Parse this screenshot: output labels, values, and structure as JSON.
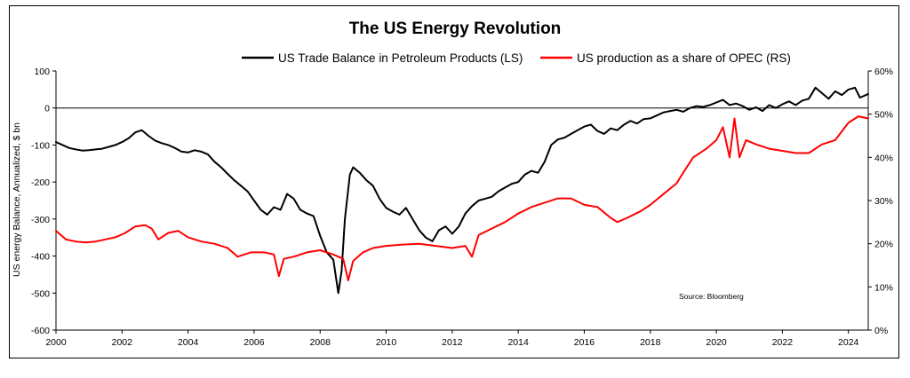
{
  "chart_data": {
    "type": "line",
    "title": "The US Energy Revolution",
    "source": "Source: Bloomberg",
    "ylabel_left": "US energy Balance, Annualized, $ bn",
    "left_axis": {
      "min": -600,
      "max": 100,
      "ticks": [
        "100",
        "0",
        "-100",
        "-200",
        "-300",
        "-400",
        "-500",
        "-600"
      ]
    },
    "right_axis": {
      "min": 0,
      "max": 60,
      "unit": "%",
      "ticks": [
        "60%",
        "50%",
        "40%",
        "30%",
        "20%",
        "10%",
        "0%"
      ]
    },
    "x_axis": {
      "min": 2000,
      "max": 2024.6,
      "ticks": [
        "2000",
        "2002",
        "2004",
        "2006",
        "2008",
        "2010",
        "2012",
        "2014",
        "2016",
        "2018",
        "2020",
        "2022",
        "2024"
      ]
    },
    "legend_position": "top",
    "series": [
      {
        "name": "US Trade Balance in Petroleum Products (LS)",
        "axis": "left",
        "color": "#000000",
        "points": [
          [
            2000.0,
            -92
          ],
          [
            2000.2,
            -100
          ],
          [
            2000.4,
            -108
          ],
          [
            2000.6,
            -112
          ],
          [
            2000.8,
            -115
          ],
          [
            2001.0,
            -114
          ],
          [
            2001.2,
            -112
          ],
          [
            2001.4,
            -110
          ],
          [
            2001.6,
            -105
          ],
          [
            2001.8,
            -100
          ],
          [
            2002.0,
            -92
          ],
          [
            2002.2,
            -82
          ],
          [
            2002.4,
            -66
          ],
          [
            2002.6,
            -60
          ],
          [
            2002.8,
            -75
          ],
          [
            2003.0,
            -88
          ],
          [
            2003.2,
            -95
          ],
          [
            2003.4,
            -100
          ],
          [
            2003.6,
            -108
          ],
          [
            2003.8,
            -118
          ],
          [
            2004.0,
            -120
          ],
          [
            2004.2,
            -114
          ],
          [
            2004.4,
            -118
          ],
          [
            2004.6,
            -125
          ],
          [
            2004.8,
            -145
          ],
          [
            2005.0,
            -160
          ],
          [
            2005.2,
            -178
          ],
          [
            2005.4,
            -195
          ],
          [
            2005.6,
            -210
          ],
          [
            2005.8,
            -225
          ],
          [
            2006.0,
            -250
          ],
          [
            2006.2,
            -275
          ],
          [
            2006.4,
            -288
          ],
          [
            2006.6,
            -268
          ],
          [
            2006.8,
            -275
          ],
          [
            2007.0,
            -232
          ],
          [
            2007.2,
            -245
          ],
          [
            2007.4,
            -275
          ],
          [
            2007.6,
            -285
          ],
          [
            2007.8,
            -292
          ],
          [
            2008.0,
            -345
          ],
          [
            2008.2,
            -390
          ],
          [
            2008.4,
            -410
          ],
          [
            2008.55,
            -500
          ],
          [
            2008.65,
            -440
          ],
          [
            2008.75,
            -300
          ],
          [
            2008.9,
            -180
          ],
          [
            2009.0,
            -160
          ],
          [
            2009.2,
            -175
          ],
          [
            2009.4,
            -195
          ],
          [
            2009.6,
            -210
          ],
          [
            2009.8,
            -245
          ],
          [
            2010.0,
            -270
          ],
          [
            2010.2,
            -280
          ],
          [
            2010.4,
            -288
          ],
          [
            2010.6,
            -270
          ],
          [
            2010.8,
            -300
          ],
          [
            2011.0,
            -330
          ],
          [
            2011.2,
            -350
          ],
          [
            2011.4,
            -360
          ],
          [
            2011.6,
            -330
          ],
          [
            2011.8,
            -320
          ],
          [
            2012.0,
            -340
          ],
          [
            2012.2,
            -320
          ],
          [
            2012.4,
            -285
          ],
          [
            2012.6,
            -265
          ],
          [
            2012.8,
            -250
          ],
          [
            2013.0,
            -245
          ],
          [
            2013.2,
            -240
          ],
          [
            2013.4,
            -225
          ],
          [
            2013.6,
            -215
          ],
          [
            2013.8,
            -205
          ],
          [
            2014.0,
            -200
          ],
          [
            2014.2,
            -180
          ],
          [
            2014.4,
            -170
          ],
          [
            2014.6,
            -175
          ],
          [
            2014.8,
            -145
          ],
          [
            2015.0,
            -100
          ],
          [
            2015.2,
            -85
          ],
          [
            2015.4,
            -80
          ],
          [
            2015.6,
            -70
          ],
          [
            2015.8,
            -60
          ],
          [
            2016.0,
            -50
          ],
          [
            2016.2,
            -45
          ],
          [
            2016.4,
            -62
          ],
          [
            2016.6,
            -70
          ],
          [
            2016.8,
            -55
          ],
          [
            2017.0,
            -60
          ],
          [
            2017.2,
            -45
          ],
          [
            2017.4,
            -35
          ],
          [
            2017.6,
            -42
          ],
          [
            2017.8,
            -30
          ],
          [
            2018.0,
            -28
          ],
          [
            2018.2,
            -20
          ],
          [
            2018.4,
            -12
          ],
          [
            2018.6,
            -8
          ],
          [
            2018.8,
            -5
          ],
          [
            2019.0,
            -10
          ],
          [
            2019.2,
            0
          ],
          [
            2019.4,
            5
          ],
          [
            2019.6,
            3
          ],
          [
            2019.8,
            8
          ],
          [
            2020.0,
            15
          ],
          [
            2020.2,
            22
          ],
          [
            2020.4,
            8
          ],
          [
            2020.6,
            12
          ],
          [
            2020.8,
            5
          ],
          [
            2021.0,
            -5
          ],
          [
            2021.2,
            2
          ],
          [
            2021.4,
            -8
          ],
          [
            2021.6,
            8
          ],
          [
            2021.8,
            0
          ],
          [
            2022.0,
            10
          ],
          [
            2022.2,
            18
          ],
          [
            2022.4,
            8
          ],
          [
            2022.6,
            20
          ],
          [
            2022.8,
            25
          ],
          [
            2023.0,
            55
          ],
          [
            2023.2,
            40
          ],
          [
            2023.4,
            25
          ],
          [
            2023.6,
            45
          ],
          [
            2023.8,
            35
          ],
          [
            2024.0,
            50
          ],
          [
            2024.2,
            55
          ],
          [
            2024.35,
            28
          ],
          [
            2024.6,
            38
          ]
        ]
      },
      {
        "name": "US production as a share of OPEC (RS)",
        "axis": "right",
        "color": "#ff0000",
        "points": [
          [
            2000.0,
            23
          ],
          [
            2000.3,
            21
          ],
          [
            2000.6,
            20.5
          ],
          [
            2000.9,
            20.3
          ],
          [
            2001.2,
            20.5
          ],
          [
            2001.5,
            21
          ],
          [
            2001.8,
            21.5
          ],
          [
            2002.1,
            22.5
          ],
          [
            2002.4,
            24
          ],
          [
            2002.7,
            24.3
          ],
          [
            2002.9,
            23.5
          ],
          [
            2003.1,
            21
          ],
          [
            2003.4,
            22.5
          ],
          [
            2003.7,
            23
          ],
          [
            2004.0,
            21.5
          ],
          [
            2004.4,
            20.5
          ],
          [
            2004.8,
            20
          ],
          [
            2005.2,
            19
          ],
          [
            2005.5,
            17
          ],
          [
            2005.9,
            18
          ],
          [
            2006.3,
            18
          ],
          [
            2006.6,
            17.5
          ],
          [
            2006.75,
            12.5
          ],
          [
            2006.9,
            16.5
          ],
          [
            2007.2,
            17
          ],
          [
            2007.6,
            18
          ],
          [
            2008.0,
            18.5
          ],
          [
            2008.4,
            17.5
          ],
          [
            2008.7,
            16.5
          ],
          [
            2008.85,
            11.5
          ],
          [
            2009.0,
            16
          ],
          [
            2009.3,
            18
          ],
          [
            2009.6,
            19
          ],
          [
            2010.0,
            19.5
          ],
          [
            2010.5,
            19.8
          ],
          [
            2011.0,
            20
          ],
          [
            2011.5,
            19.5
          ],
          [
            2012.0,
            19
          ],
          [
            2012.4,
            19.5
          ],
          [
            2012.6,
            17
          ],
          [
            2012.8,
            22
          ],
          [
            2013.2,
            23.5
          ],
          [
            2013.6,
            25
          ],
          [
            2014.0,
            27
          ],
          [
            2014.4,
            28.5
          ],
          [
            2014.8,
            29.5
          ],
          [
            2015.2,
            30.5
          ],
          [
            2015.6,
            30.5
          ],
          [
            2016.0,
            29
          ],
          [
            2016.4,
            28.5
          ],
          [
            2016.8,
            26
          ],
          [
            2017.0,
            25
          ],
          [
            2017.3,
            26
          ],
          [
            2017.7,
            27.5
          ],
          [
            2018.0,
            29
          ],
          [
            2018.4,
            31.5
          ],
          [
            2018.8,
            34
          ],
          [
            2019.0,
            36.5
          ],
          [
            2019.3,
            40
          ],
          [
            2019.7,
            42
          ],
          [
            2020.0,
            44
          ],
          [
            2020.2,
            47
          ],
          [
            2020.4,
            40
          ],
          [
            2020.55,
            49
          ],
          [
            2020.7,
            40
          ],
          [
            2020.9,
            44
          ],
          [
            2021.2,
            43
          ],
          [
            2021.6,
            42
          ],
          [
            2022.0,
            41.5
          ],
          [
            2022.4,
            41
          ],
          [
            2022.8,
            41
          ],
          [
            2023.2,
            43
          ],
          [
            2023.6,
            44
          ],
          [
            2024.0,
            48
          ],
          [
            2024.3,
            49.5
          ],
          [
            2024.6,
            49
          ]
        ]
      }
    ]
  }
}
